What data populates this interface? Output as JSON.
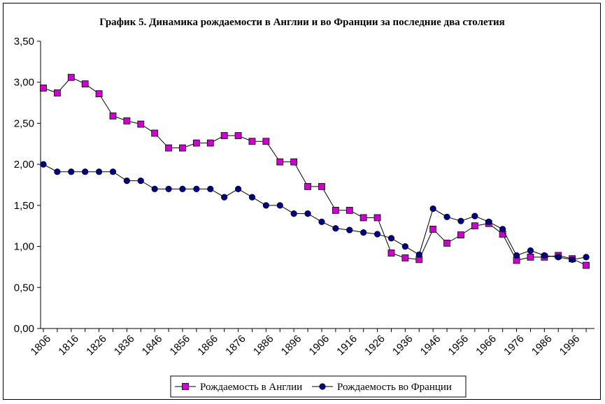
{
  "chart_data": {
    "type": "line",
    "title": "График 5. Динамика рождаемости в Англии и во Франции за последние два столетия",
    "xlabel": "",
    "ylabel": "",
    "ylim": [
      0,
      3.5
    ],
    "yticks": [
      "0,00",
      "0,50",
      "1,00",
      "1,50",
      "2,00",
      "2,50",
      "3,00",
      "3,50"
    ],
    "xticks": [
      "1806",
      "1816",
      "1826",
      "1836",
      "1846",
      "1856",
      "1866",
      "1876",
      "1886",
      "1896",
      "1906",
      "1916",
      "1926",
      "1936",
      "1946",
      "1956",
      "1966",
      "1976",
      "1986",
      "1996"
    ],
    "x": [
      1806,
      1811,
      1816,
      1821,
      1826,
      1831,
      1836,
      1841,
      1846,
      1851,
      1856,
      1861,
      1866,
      1871,
      1876,
      1881,
      1886,
      1891,
      1896,
      1901,
      1906,
      1911,
      1916,
      1921,
      1926,
      1931,
      1936,
      1941,
      1946,
      1951,
      1956,
      1961,
      1966,
      1971,
      1976,
      1981,
      1986,
      1991,
      1996,
      2001
    ],
    "grid": false,
    "legend_position": "bottom",
    "series": [
      {
        "name": "Рождаемость в Англии",
        "color": "#cc00cc",
        "marker": "square",
        "values": [
          2.93,
          2.87,
          3.06,
          2.98,
          2.86,
          2.59,
          2.53,
          2.49,
          2.38,
          2.2,
          2.2,
          2.26,
          2.26,
          2.35,
          2.35,
          2.28,
          2.28,
          2.03,
          2.03,
          1.73,
          1.73,
          1.44,
          1.44,
          1.35,
          1.35,
          0.92,
          0.86,
          0.84,
          1.21,
          1.04,
          1.14,
          1.25,
          1.28,
          1.15,
          0.83,
          0.87,
          0.87,
          0.89,
          0.85,
          0.77
        ]
      },
      {
        "name": "Рождаемость во Франции",
        "color": "#000080",
        "marker": "circle",
        "values": [
          2.0,
          1.91,
          1.91,
          1.91,
          1.91,
          1.91,
          1.8,
          1.8,
          1.7,
          1.7,
          1.7,
          1.7,
          1.7,
          1.6,
          1.7,
          1.6,
          1.5,
          1.5,
          1.4,
          1.4,
          1.3,
          1.22,
          1.2,
          1.17,
          1.15,
          1.1,
          1.0,
          0.9,
          1.46,
          1.36,
          1.31,
          1.37,
          1.3,
          1.21,
          0.89,
          0.95,
          0.89,
          0.87,
          0.84,
          0.87
        ]
      }
    ]
  }
}
